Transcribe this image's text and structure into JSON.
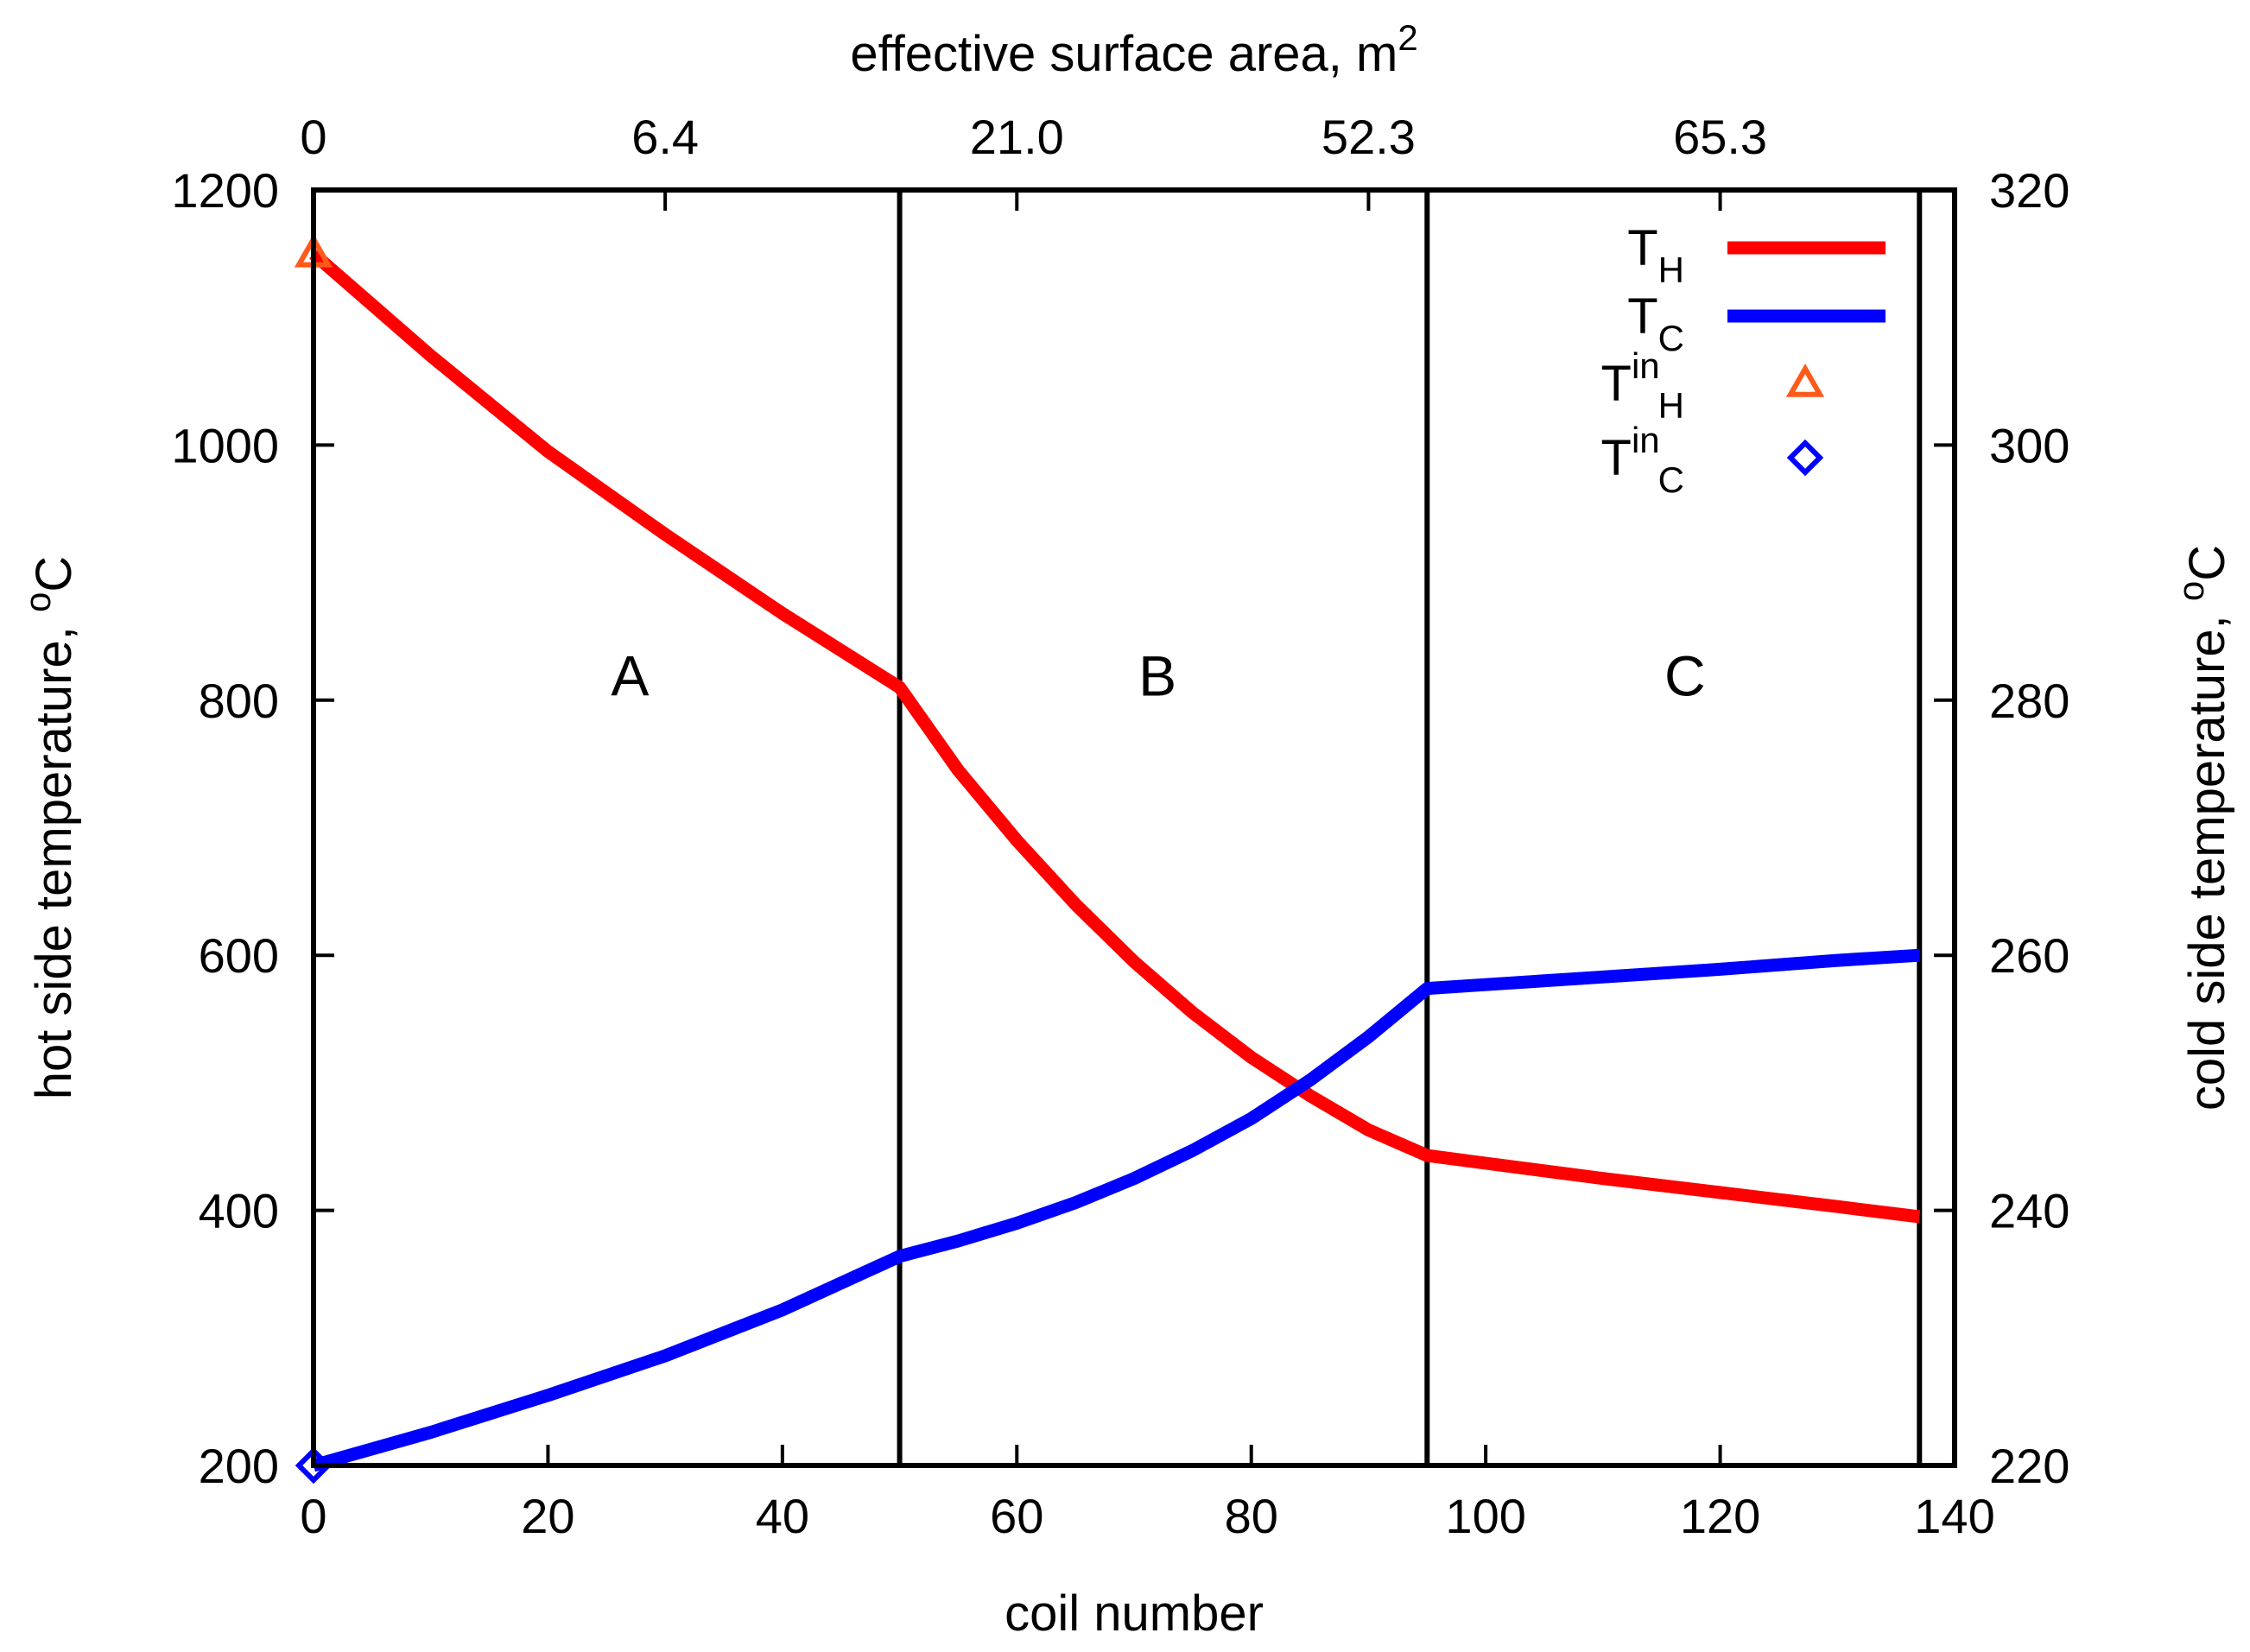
{
  "chart_data": {
    "type": "line",
    "xlabel": "coil number",
    "x2label": "effective surface area, m",
    "x2label_sup": "2",
    "ylabel": "hot side temperature, ",
    "ylabel_unit": "C",
    "y2label": "cold side temperature, ",
    "y2label_unit": "C",
    "degree_symbol": "o",
    "xlim": [
      0,
      140
    ],
    "ylim": [
      200,
      1200
    ],
    "y2lim": [
      220,
      320
    ],
    "xticks": [
      0,
      20,
      40,
      60,
      80,
      100,
      120,
      140
    ],
    "yticks": [
      200,
      400,
      600,
      800,
      1000,
      1200
    ],
    "y2ticks": [
      220,
      240,
      260,
      280,
      300,
      320
    ],
    "x2ticks": [
      {
        "at": 0,
        "label": "0"
      },
      {
        "at": 30,
        "label": "6.4"
      },
      {
        "at": 60,
        "label": "21.0"
      },
      {
        "at": 90,
        "label": "52.3"
      },
      {
        "at": 120,
        "label": "65.3"
      }
    ],
    "region_boundaries": [
      50,
      95,
      137
    ],
    "regions": [
      {
        "label": "A",
        "x": 27,
        "y": 820
      },
      {
        "label": "B",
        "x": 72,
        "y": 820
      },
      {
        "label": "C",
        "x": 117,
        "y": 820
      }
    ],
    "series": [
      {
        "name": "T",
        "subscript": "H",
        "axis": "left",
        "color": "#ff0000",
        "x": [
          0,
          10,
          20,
          30,
          40,
          50,
          55,
          60,
          65,
          70,
          75,
          80,
          85,
          90,
          95,
          100,
          110,
          120,
          130,
          137
        ],
        "y": [
          1150,
          1070,
          995,
          930,
          868,
          810,
          745,
          690,
          640,
          595,
          555,
          520,
          490,
          463,
          443,
          437,
          425,
          414,
          403,
          395
        ]
      },
      {
        "name": "T",
        "subscript": "C",
        "axis": "right",
        "color": "#0000ff",
        "x": [
          0,
          10,
          20,
          30,
          40,
          50,
          55,
          60,
          65,
          70,
          75,
          80,
          85,
          90,
          95,
          100,
          110,
          120,
          130,
          137
        ],
        "y": [
          220,
          222.6,
          225.5,
          228.6,
          232.2,
          236.4,
          237.6,
          239,
          240.6,
          242.5,
          244.7,
          247.2,
          250.2,
          253.6,
          257.4,
          257.7,
          258.3,
          258.9,
          259.6,
          260
        ]
      }
    ],
    "markers": [
      {
        "name": "T",
        "superscript": "in",
        "subscript": "H",
        "shape": "triangle",
        "color": "#ff5a1a",
        "axis": "left",
        "x": 0,
        "y": 1150
      },
      {
        "name": "T",
        "superscript": "in",
        "subscript": "C",
        "shape": "diamond",
        "color": "#0000ff",
        "axis": "left",
        "x": 0,
        "y": 200
      }
    ]
  }
}
